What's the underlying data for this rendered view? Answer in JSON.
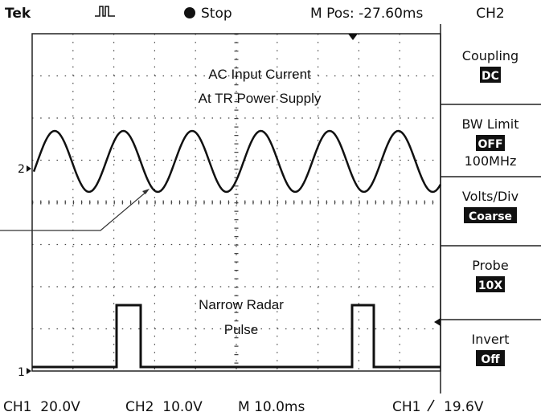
{
  "header": {
    "brand": "Tek",
    "status": "Stop",
    "position": "M Pos: -27.60ms",
    "channel": "CH2"
  },
  "menu": [
    {
      "label": "Coupling",
      "value": "DC"
    },
    {
      "label": "BW Limit",
      "value": "OFF",
      "detail": "100MHz"
    },
    {
      "label": "Volts/Div",
      "value": "Coarse"
    },
    {
      "label": "Probe",
      "value": "10X"
    },
    {
      "label": "Invert",
      "value": "Off"
    }
  ],
  "annotations": [
    "AC Input Current",
    "At TR Power Supply",
    "Narrow Radar",
    "Pulse"
  ],
  "markers": [
    "2",
    "1"
  ],
  "footer": {
    "ch1": "CH1  20.0V",
    "ch2": "CH2  10.0V",
    "time": "M 10.0ms",
    "trigger_channel": "CH1",
    "trigger_level": "19.6V"
  }
}
